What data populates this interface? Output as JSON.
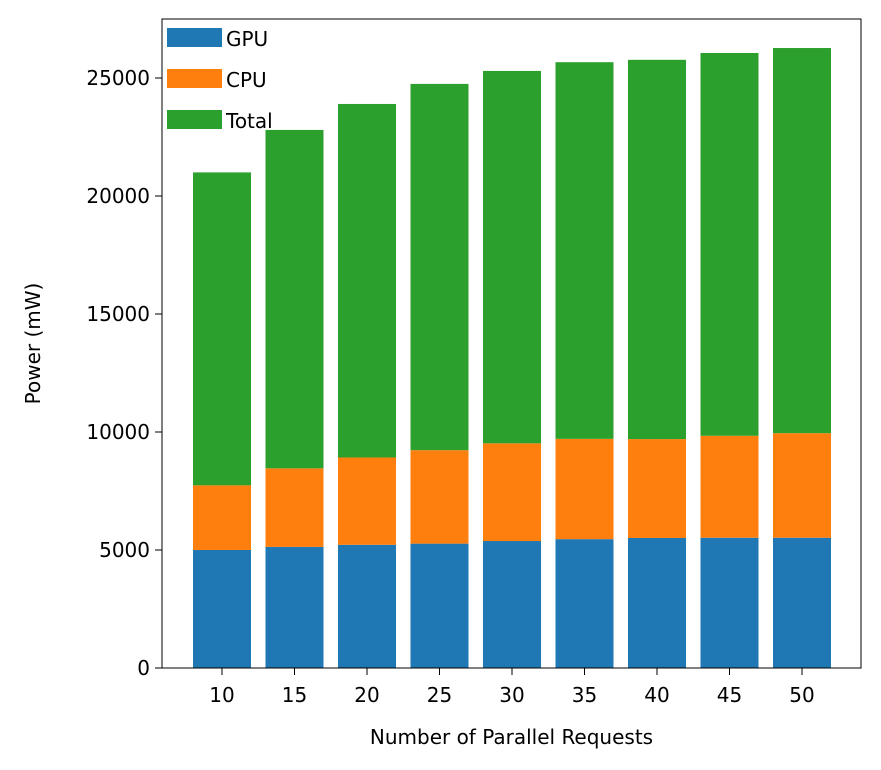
{
  "chart_data": {
    "type": "bar",
    "stacked": true,
    "categories": [
      "10",
      "15",
      "20",
      "25",
      "30",
      "35",
      "40",
      "45",
      "50"
    ],
    "series": [
      {
        "name": "GPU",
        "color": "#1f77b4",
        "values": [
          5000,
          5130,
          5220,
          5270,
          5380,
          5460,
          5510,
          5520,
          5520
        ]
      },
      {
        "name": "CPU",
        "color": "#ff7f0e",
        "values": [
          2740,
          3330,
          3700,
          3960,
          4140,
          4250,
          4190,
          4320,
          4430
        ]
      },
      {
        "name": "Total",
        "color": "#2ca02c",
        "values": [
          13260,
          14340,
          14980,
          15520,
          15780,
          15960,
          16070,
          16220,
          16320
        ]
      }
    ],
    "xlabel": "Number of Parallel Requests",
    "ylabel": "Power (mW)",
    "ylim": [
      0,
      27500
    ],
    "yticks": [
      0,
      5000,
      10000,
      15000,
      20000,
      25000
    ],
    "grid": false,
    "legend": "top-left"
  }
}
